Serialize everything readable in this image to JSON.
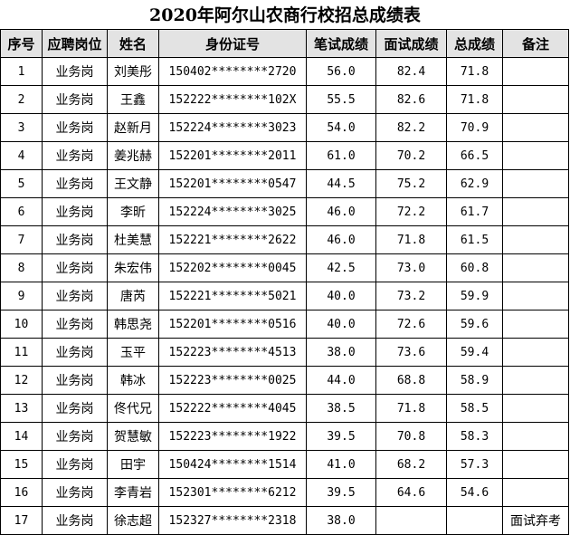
{
  "title": "2020年阿尔山农商行校招总成绩表",
  "headers": [
    "序号",
    "应聘岗位",
    "姓名",
    "身份证号",
    "笔试成绩",
    "面试成绩",
    "总成绩",
    "备注"
  ],
  "rows": [
    [
      "1",
      "业务岗",
      "刘美彤",
      "150402********2720",
      "56.0",
      "82.4",
      "71.8",
      ""
    ],
    [
      "2",
      "业务岗",
      "王鑫",
      "152222********102X",
      "55.5",
      "82.6",
      "71.8",
      ""
    ],
    [
      "3",
      "业务岗",
      "赵新月",
      "152224********3023",
      "54.0",
      "82.2",
      "70.9",
      ""
    ],
    [
      "4",
      "业务岗",
      "姜兆赫",
      "152201********2011",
      "61.0",
      "70.2",
      "66.5",
      ""
    ],
    [
      "5",
      "业务岗",
      "王文静",
      "152201********0547",
      "44.5",
      "75.2",
      "62.9",
      ""
    ],
    [
      "6",
      "业务岗",
      "李昕",
      "152224********3025",
      "46.0",
      "72.2",
      "61.7",
      ""
    ],
    [
      "7",
      "业务岗",
      "杜美慧",
      "152221********2622",
      "46.0",
      "71.8",
      "61.5",
      ""
    ],
    [
      "8",
      "业务岗",
      "朱宏伟",
      "152202********0045",
      "42.5",
      "73.0",
      "60.8",
      ""
    ],
    [
      "9",
      "业务岗",
      "唐芮",
      "152221********5021",
      "40.0",
      "73.2",
      "59.9",
      ""
    ],
    [
      "10",
      "业务岗",
      "韩思尧",
      "152201********0516",
      "40.0",
      "72.6",
      "59.6",
      ""
    ],
    [
      "11",
      "业务岗",
      "玉平",
      "152223********4513",
      "38.0",
      "73.6",
      "59.4",
      ""
    ],
    [
      "12",
      "业务岗",
      "韩冰",
      "152223********0025",
      "44.0",
      "68.8",
      "58.9",
      ""
    ],
    [
      "13",
      "业务岗",
      "佟代兄",
      "152222********4045",
      "38.5",
      "71.8",
      "58.5",
      ""
    ],
    [
      "14",
      "业务岗",
      "贺慧敏",
      "152223********1922",
      "39.5",
      "70.8",
      "58.3",
      ""
    ],
    [
      "15",
      "业务岗",
      "田宇",
      "150424********1514",
      "41.0",
      "68.2",
      "57.3",
      ""
    ],
    [
      "16",
      "业务岗",
      "李青岩",
      "152301********6212",
      "39.5",
      "64.6",
      "54.6",
      ""
    ],
    [
      "17",
      "业务岗",
      "徐志超",
      "152327********2318",
      "38.0",
      "",
      "",
      "面试弃考"
    ]
  ]
}
